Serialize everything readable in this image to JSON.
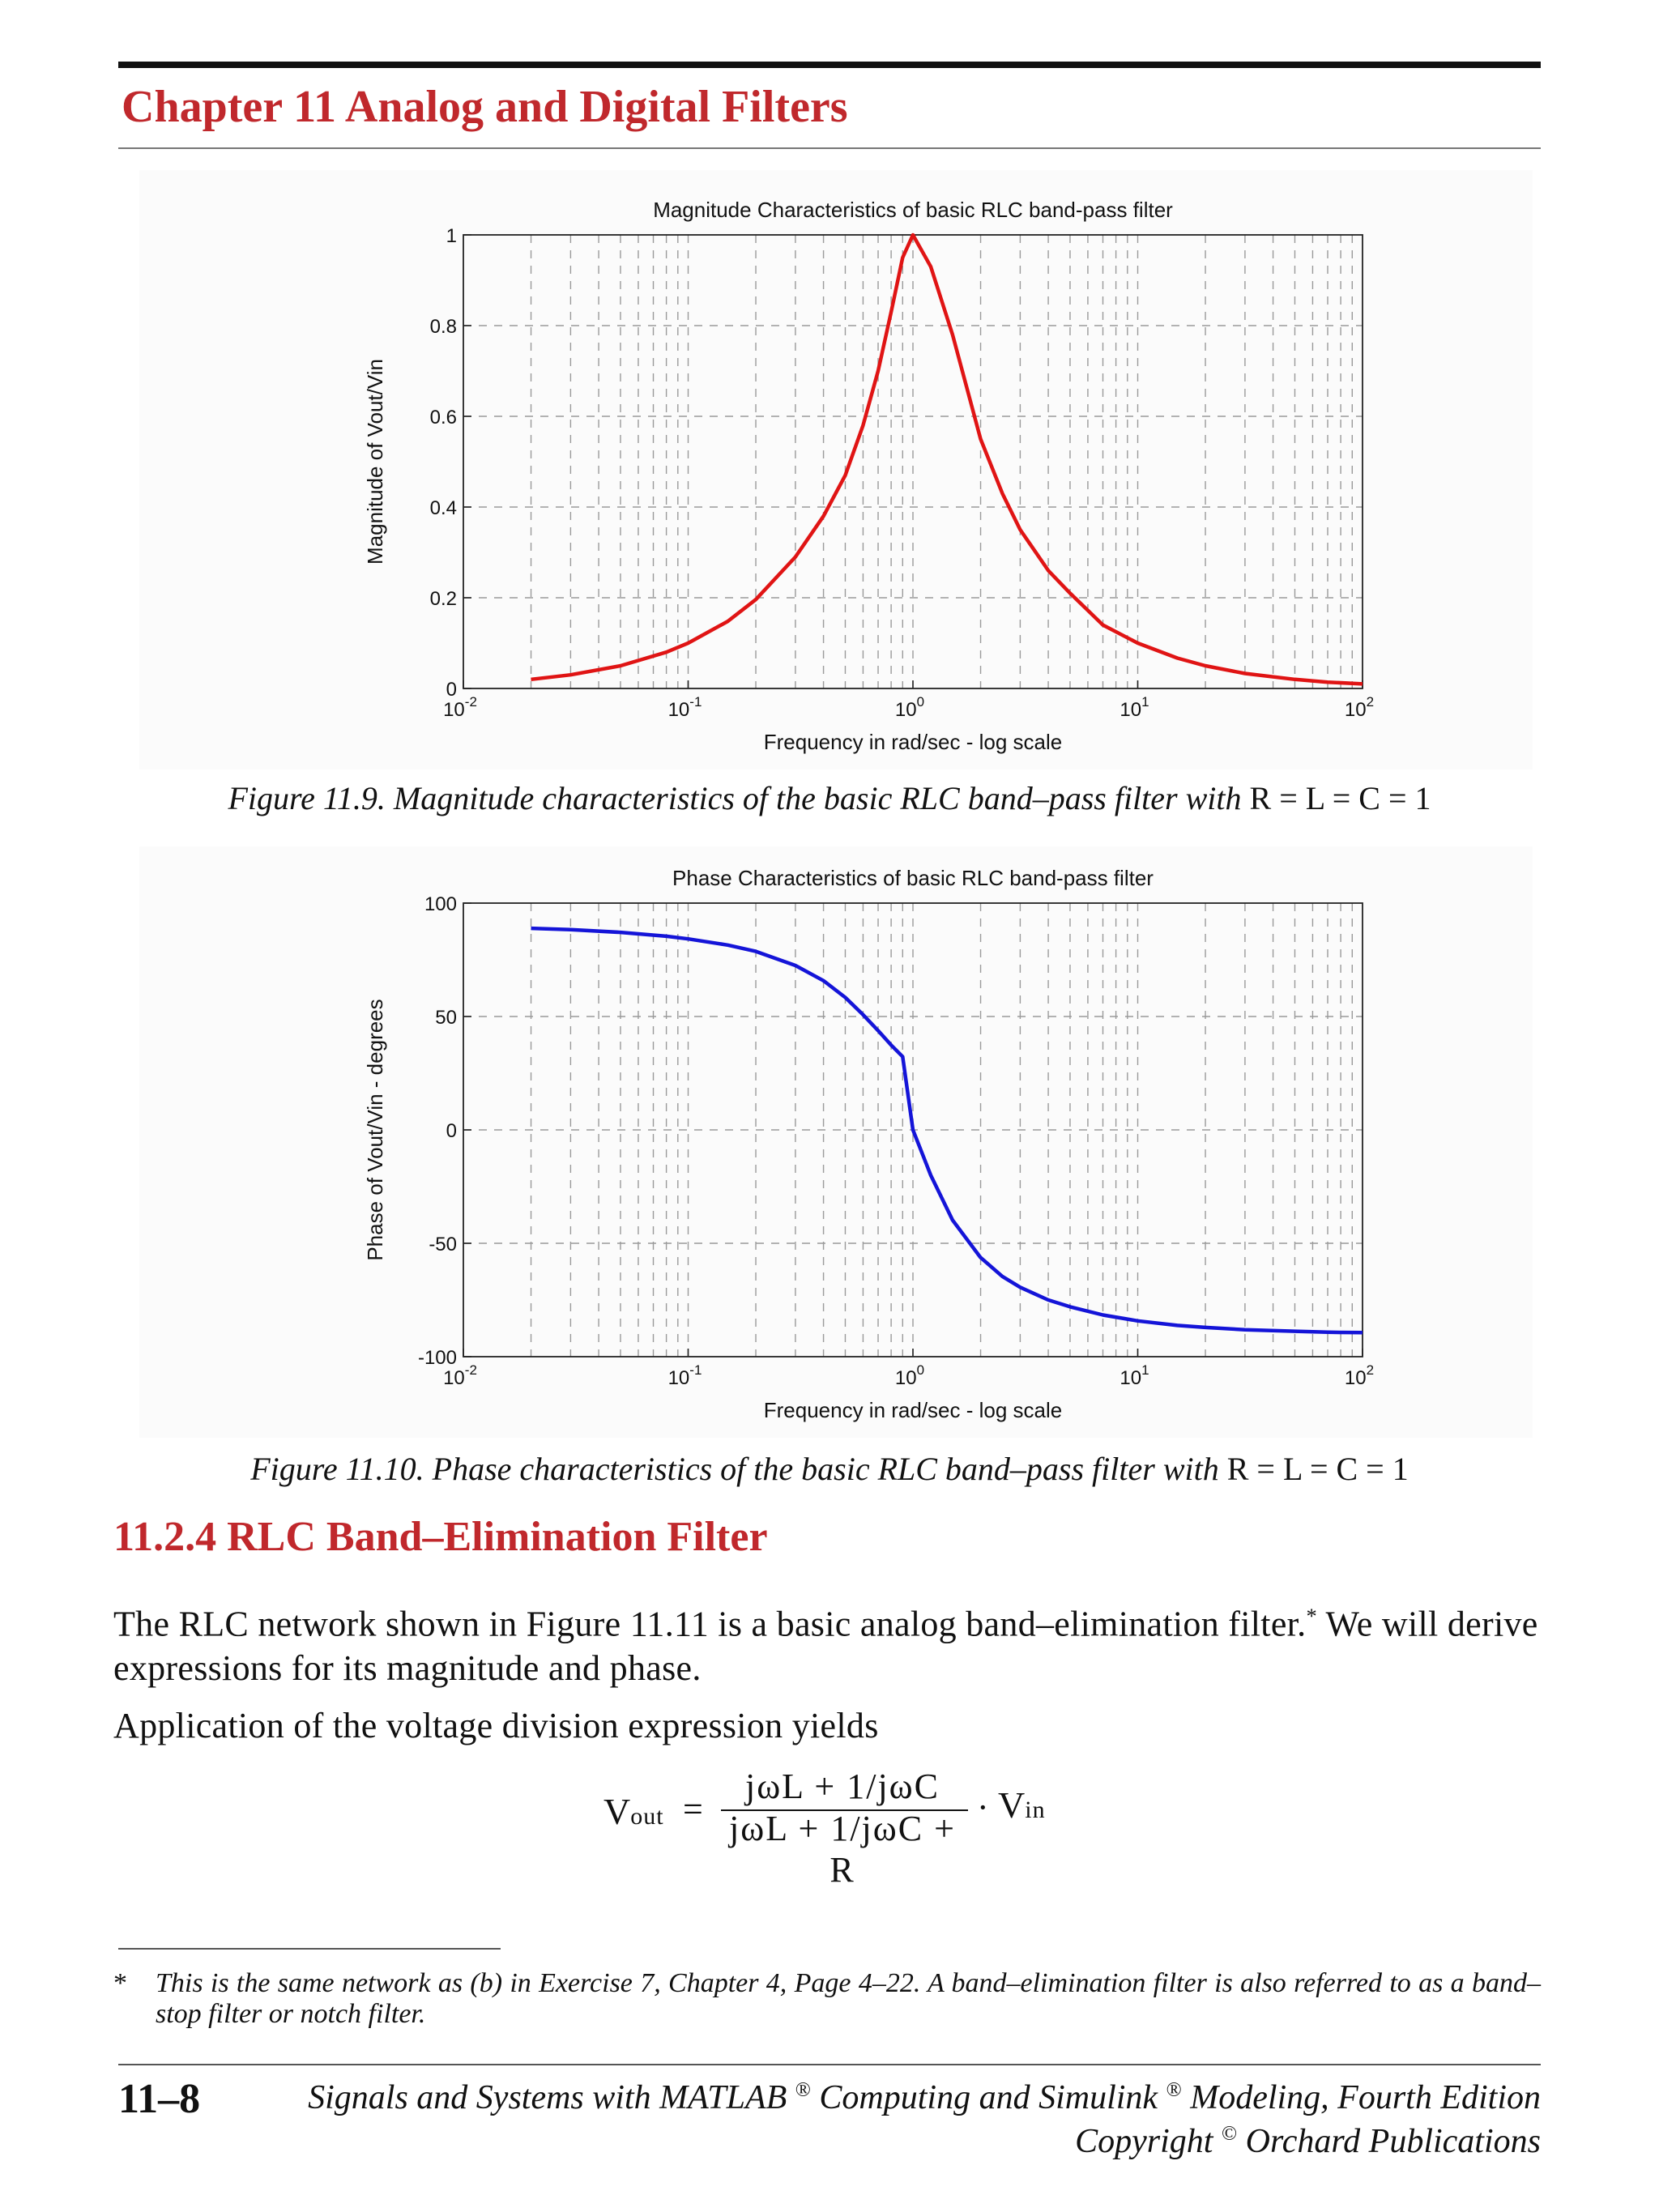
{
  "header": {
    "chapter_title": "Chapter 11  Analog and Digital Filters"
  },
  "figure1": {
    "caption_italic": "Figure 11.9.  Magnitude characteristics of the basic RLC band–pass filter with ",
    "caption_upright": "R = L = C = 1"
  },
  "figure2": {
    "caption_italic": "Figure 11.10.  Phase characteristics of the basic RLC band–pass filter with ",
    "caption_upright": "R = L = C = 1"
  },
  "section": {
    "title": "11.2.4 RLC Band–Elimination Filter"
  },
  "body": {
    "para1_a": "The RLC network shown in Figure 11.11 is a basic analog band–elimination filter.",
    "para1_mark": "*",
    "para1_b": " We will derive expressions for its magnitude and phase.",
    "para2": "Application of the voltage division expression yields"
  },
  "equation": {
    "lhs_main": "V",
    "lhs_sub": "out",
    "equals": "=",
    "numerator": "jωL + 1/jωC",
    "denominator": "jωL + 1/jωC + R",
    "dot": "·",
    "rhs_main": "V",
    "rhs_sub": "in"
  },
  "footnote": {
    "marker": "*",
    "text": "This is the same network as (b) in Exercise 7, Chapter 4, Page 4–22. A band–elimination filter is also referred to as a band–stop filter or notch filter."
  },
  "footer": {
    "page_number": "11–8",
    "book_title_a": "Signals and Systems with MATLAB",
    "book_title_reg1": "®",
    "book_title_b": " Computing and Simulink",
    "book_title_reg2": "®",
    "book_title_c": " Modeling, Fourth Edition",
    "copyright_a": "Copyright",
    "copyright_sym": "©",
    "copyright_b": " Orchard Publications"
  },
  "chart_data": [
    {
      "type": "line",
      "title": "Magnitude Characteristics of basic RLC band-pass filter",
      "xlabel": "Frequency in rad/sec - log scale",
      "ylabel": "Magnitude of Vout/Vin",
      "xscale": "log",
      "xlim": [
        0.01,
        100
      ],
      "ylim": [
        0,
        1
      ],
      "xticks": [
        {
          "base": "10",
          "exp": "-2"
        },
        {
          "base": "10",
          "exp": "-1"
        },
        {
          "base": "10",
          "exp": "0"
        },
        {
          "base": "10",
          "exp": "1"
        },
        {
          "base": "10",
          "exp": "2"
        }
      ],
      "yticks": [
        "0",
        "0.2",
        "0.4",
        "0.6",
        "0.8",
        "1"
      ],
      "grid": true,
      "line_color": "#e01414",
      "series": [
        {
          "x": [
            0.02,
            0.03,
            0.05,
            0.08,
            0.1,
            0.15,
            0.2,
            0.3,
            0.4,
            0.5,
            0.6,
            0.7,
            0.8,
            0.9,
            1,
            1.2,
            1.5,
            2,
            2.5,
            3,
            4,
            5,
            7,
            10,
            15,
            20,
            30,
            50,
            70,
            100
          ],
          "values": [
            0.02,
            0.03,
            0.05,
            0.08,
            0.1,
            0.148,
            0.196,
            0.29,
            0.38,
            0.47,
            0.58,
            0.7,
            0.83,
            0.95,
            1,
            0.93,
            0.78,
            0.55,
            0.43,
            0.35,
            0.26,
            0.21,
            0.14,
            0.1,
            0.067,
            0.05,
            0.033,
            0.02,
            0.014,
            0.01
          ]
        }
      ]
    },
    {
      "type": "line",
      "title": "Phase Characteristics of basic RLC band-pass filter",
      "xlabel": "Frequency in rad/sec - log scale",
      "ylabel": "Phase of Vout/Vin - degrees",
      "xscale": "log",
      "xlim": [
        0.01,
        100
      ],
      "ylim": [
        -100,
        100
      ],
      "xticks": [
        {
          "base": "10",
          "exp": "-2"
        },
        {
          "base": "10",
          "exp": "-1"
        },
        {
          "base": "10",
          "exp": "0"
        },
        {
          "base": "10",
          "exp": "1"
        },
        {
          "base": "10",
          "exp": "2"
        }
      ],
      "yticks": [
        "-100",
        "-50",
        "0",
        "50",
        "100"
      ],
      "grid": true,
      "line_color": "#1414d8",
      "series": [
        {
          "x": [
            0.02,
            0.03,
            0.05,
            0.08,
            0.1,
            0.15,
            0.2,
            0.3,
            0.4,
            0.5,
            0.6,
            0.7,
            0.8,
            0.9,
            1,
            1.2,
            1.5,
            2,
            2.5,
            3,
            4,
            5,
            7,
            10,
            15,
            20,
            30,
            50,
            70,
            100
          ],
          "values": [
            88.9,
            88.3,
            87.1,
            85.4,
            84.2,
            81.5,
            78.7,
            72.5,
            65.8,
            58.4,
            50.8,
            43.8,
            37.4,
            32.3,
            0,
            -20.0,
            -39.8,
            -56.3,
            -64.6,
            -69.4,
            -75.0,
            -78.0,
            -81.6,
            -84.2,
            -86.2,
            -87.1,
            -88.1,
            -88.8,
            -89.2,
            -89.4
          ]
        }
      ]
    }
  ]
}
